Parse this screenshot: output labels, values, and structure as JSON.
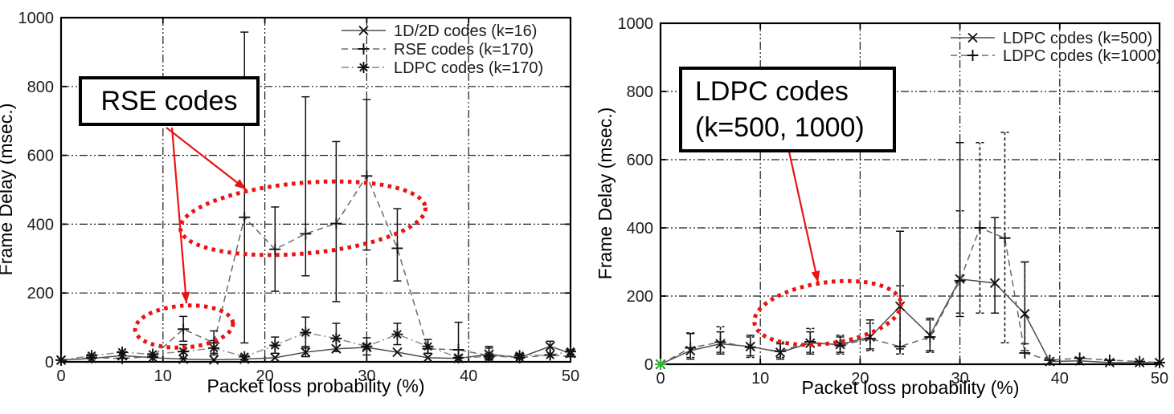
{
  "colors": {
    "annotation_red": "#e81414",
    "frame_black": "#000000",
    "grid_black": "#1a1a1a",
    "marker_black": "#111111",
    "line_dark_gray": "#4d4d4d",
    "line_mid_gray": "#666666",
    "line_light_gray": "#8a8a8a",
    "origin_marker_green": "#2eb82e"
  },
  "chart_data": [
    {
      "type": "line",
      "title": "",
      "xlabel": "Packet loss probability (%)",
      "ylabel": "Frame Delay (msec.)",
      "xlim": [
        0,
        50
      ],
      "ylim": [
        0,
        1000
      ],
      "x_ticks": [
        0,
        10,
        20,
        30,
        40,
        50
      ],
      "y_ticks": [
        0,
        200,
        400,
        600,
        800,
        1000
      ],
      "grid": true,
      "legend_position": "top-right",
      "series": [
        {
          "name": "1D/2D codes (k=16)",
          "marker": "x",
          "line": "solid",
          "color": "#4d4d4d",
          "x": [
            0,
            3,
            6,
            9,
            12,
            15,
            18,
            21,
            24,
            27,
            30,
            33,
            36,
            39,
            42,
            45,
            48,
            50
          ],
          "y": [
            5,
            10,
            18,
            12,
            8,
            6,
            8,
            12,
            28,
            38,
            42,
            28,
            12,
            10,
            22,
            12,
            45,
            25
          ],
          "err": [
            null,
            null,
            null,
            null,
            null,
            null,
            null,
            null,
            [
              15,
              45
            ],
            null,
            null,
            null,
            null,
            null,
            [
              8,
              40
            ],
            null,
            [
              20,
              60
            ],
            null
          ]
        },
        {
          "name": "RSE codes (k=170)",
          "marker": "plus",
          "line": "dashed",
          "color": "#6a6a6a",
          "x": [
            0,
            3,
            6,
            9,
            12,
            15,
            18,
            21,
            24,
            27,
            30,
            33,
            36,
            39,
            42,
            45,
            48,
            50
          ],
          "y": [
            5,
            12,
            10,
            15,
            95,
            55,
            420,
            327,
            372,
            402,
            540,
            330,
            38,
            35,
            18,
            12,
            20,
            15
          ],
          "err": [
            null,
            null,
            null,
            null,
            [
              60,
              132
            ],
            [
              25,
              90
            ],
            [
              55,
              958
            ],
            [
              205,
              450
            ],
            [
              250,
              770
            ],
            [
              175,
              640
            ],
            [
              325,
              762
            ],
            [
              235,
              445
            ],
            null,
            [
              10,
              115
            ],
            [
              5,
              45
            ],
            null,
            null,
            null
          ]
        },
        {
          "name": "LDPC codes (k=170)",
          "marker": "asterisk",
          "line": "dashdot",
          "color": "#8a8a8a",
          "x": [
            0,
            3,
            6,
            9,
            12,
            15,
            18,
            21,
            24,
            27,
            30,
            33,
            36,
            39,
            42,
            45,
            48,
            50
          ],
          "y": [
            5,
            18,
            28,
            22,
            30,
            40,
            15,
            48,
            85,
            68,
            45,
            80,
            45,
            12,
            15,
            18,
            20,
            30
          ],
          "err": [
            null,
            null,
            null,
            null,
            [
              10,
              50
            ],
            [
              20,
              62
            ],
            null,
            [
              25,
              72
            ],
            [
              40,
              130
            ],
            [
              30,
              112
            ],
            [
              20,
              70
            ],
            [
              50,
              112
            ],
            [
              25,
              65
            ],
            null,
            null,
            null,
            null,
            null
          ]
        }
      ],
      "annotation": {
        "lines": [
          "RSE codes"
        ]
      }
    },
    {
      "type": "line",
      "title": "",
      "xlabel": "Packet loss probability (%)",
      "ylabel": "Frame Delay (msec.)",
      "xlim": [
        0,
        50
      ],
      "ylim": [
        0,
        1000
      ],
      "x_ticks": [
        0,
        10,
        20,
        30,
        40,
        50
      ],
      "y_ticks": [
        0,
        200,
        400,
        600,
        800,
        1000
      ],
      "grid": true,
      "legend_position": "top-right",
      "series": [
        {
          "name": "LDPC codes (k=500)",
          "marker": "x",
          "line": "solid",
          "color": "#4d4d4d",
          "x": [
            0,
            3,
            6,
            9,
            12,
            15,
            18,
            21,
            24,
            27,
            30,
            33.5,
            36.5,
            39,
            42,
            45,
            48,
            50
          ],
          "y": [
            0,
            40,
            60,
            52,
            35,
            62,
            58,
            80,
            170,
            85,
            250,
            238,
            148,
            8,
            10,
            5,
            5,
            5
          ],
          "err": [
            null,
            [
              15,
              90
            ],
            [
              30,
              95
            ],
            [
              25,
              85
            ],
            [
              15,
              60
            ],
            [
              30,
              95
            ],
            [
              35,
              80
            ],
            [
              45,
              130
            ],
            [
              45,
              390
            ],
            [
              40,
              135
            ],
            [
              140,
              650
            ],
            [
              150,
              430
            ],
            [
              60,
              300
            ],
            null,
            null,
            null,
            null,
            null
          ]
        },
        {
          "name": "LDPC codes (k=1000)",
          "marker": "plus",
          "line": "dashed",
          "color": "#6a6a6a",
          "x": [
            0,
            3,
            6,
            9,
            12,
            15,
            18,
            21,
            24,
            27,
            30,
            32,
            34.5,
            36.5,
            39,
            42,
            45,
            48,
            50
          ],
          "y": [
            0,
            48,
            65,
            50,
            38,
            66,
            55,
            75,
            52,
            80,
            245,
            400,
            370,
            33,
            12,
            18,
            12,
            8,
            5
          ],
          "err": [
            null,
            [
              20,
              92
            ],
            [
              35,
              110
            ],
            [
              20,
              80
            ],
            [
              20,
              65
            ],
            [
              35,
              105
            ],
            [
              30,
              85
            ],
            [
              40,
              120
            ],
            [
              30,
              230
            ],
            [
              35,
              130
            ],
            [
              150,
              450
            ],
            [
              150,
              650
            ],
            [
              63,
              680
            ],
            [
              40,
              300
            ],
            null,
            null,
            null,
            null,
            null
          ]
        }
      ],
      "extra_markers": [
        {
          "x": 0,
          "y": 0,
          "marker": "asterisk",
          "color": "#2eb82e"
        }
      ],
      "annotation": {
        "lines": [
          "LDPC codes",
          "(k=500, 1000)"
        ]
      }
    }
  ]
}
